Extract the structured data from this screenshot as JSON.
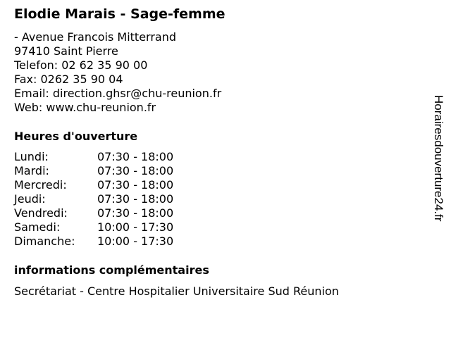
{
  "title": "Elodie Marais - Sage-femme",
  "address": {
    "street": "- Avenue Francois Mitterrand",
    "city": "97410 Saint Pierre",
    "phone": "Telefon: 02 62 35 90 00",
    "fax": "Fax: 0262 35 90 04",
    "email": "Email: direction.ghsr@chu-reunion.fr",
    "web": "Web: www.chu-reunion.fr"
  },
  "hours_heading": "Heures d'ouverture",
  "hours": [
    {
      "day": "Lundi:",
      "time": "07:30 - 18:00"
    },
    {
      "day": "Mardi:",
      "time": "07:30 - 18:00"
    },
    {
      "day": "Mercredi:",
      "time": "07:30 - 18:00"
    },
    {
      "day": "Jeudi:",
      "time": "07:30 - 18:00"
    },
    {
      "day": "Vendredi:",
      "time": "07:30 - 18:00"
    },
    {
      "day": "Samedi:",
      "time": "10:00 - 17:30"
    },
    {
      "day": "Dimanche:",
      "time": "10:00 - 17:30"
    }
  ],
  "info_heading": "informations complémentaires",
  "info_text": "Secrétariat - Centre Hospitalier Universitaire Sud Réunion",
  "watermark": "Horairesdouverture24.fr"
}
